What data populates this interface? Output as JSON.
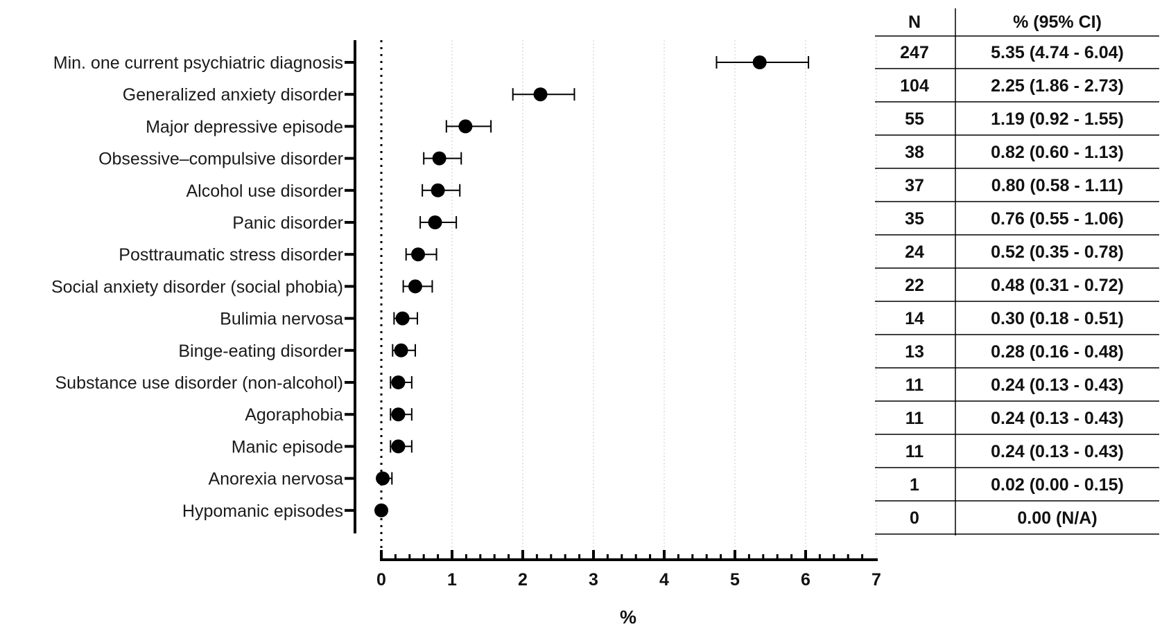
{
  "chart_data": {
    "type": "scatter",
    "subtype": "forest-plot",
    "xlabel": "%",
    "xlim": [
      0,
      7
    ],
    "x_ticks": [
      "0",
      "1",
      "2",
      "3",
      "4",
      "5",
      "6",
      "7"
    ],
    "grid": "vertical dotted",
    "reference_line": 0,
    "marker_color": "#000000",
    "rows": [
      {
        "label": "Min. one current psychiatric diagnosis",
        "estimate": 5.35,
        "lower": 4.74,
        "upper": 6.04
      },
      {
        "label": "Generalized anxiety disorder",
        "estimate": 2.25,
        "lower": 1.86,
        "upper": 2.73
      },
      {
        "label": "Major depressive episode",
        "estimate": 1.19,
        "lower": 0.92,
        "upper": 1.55
      },
      {
        "label": "Obsessive–compulsive disorder ",
        "estimate": 0.82,
        "lower": 0.6,
        "upper": 1.13
      },
      {
        "label": "Alcohol use disorder",
        "estimate": 0.8,
        "lower": 0.58,
        "upper": 1.11
      },
      {
        "label": "Panic disorder",
        "estimate": 0.76,
        "lower": 0.55,
        "upper": 1.06
      },
      {
        "label": "Posttraumatic stress disorder ",
        "estimate": 0.52,
        "lower": 0.35,
        "upper": 0.78
      },
      {
        "label": "Social anxiety disorder (social phobia)",
        "estimate": 0.48,
        "lower": 0.31,
        "upper": 0.72
      },
      {
        "label": "Bulimia nervosa",
        "estimate": 0.3,
        "lower": 0.18,
        "upper": 0.51
      },
      {
        "label": "Binge-eating disorder",
        "estimate": 0.28,
        "lower": 0.16,
        "upper": 0.48
      },
      {
        "label": "Substance use disorder (non-alcohol)",
        "estimate": 0.24,
        "lower": 0.13,
        "upper": 0.43
      },
      {
        "label": "Agoraphobia ",
        "estimate": 0.24,
        "lower": 0.13,
        "upper": 0.43
      },
      {
        "label": "Manic episode",
        "estimate": 0.24,
        "lower": 0.13,
        "upper": 0.43
      },
      {
        "label": "Anorexia nervosa",
        "estimate": 0.02,
        "lower": 0.0,
        "upper": 0.15
      },
      {
        "label": "Hypomanic episodes",
        "estimate": 0.0,
        "lower": null,
        "upper": null
      }
    ],
    "table": {
      "headers": [
        "N",
        "% (95% CI)"
      ],
      "rows": [
        [
          "247",
          "5.35 (4.74 - 6.04)"
        ],
        [
          "104",
          "2.25 (1.86 - 2.73)"
        ],
        [
          "55",
          "1.19 (0.92 - 1.55)"
        ],
        [
          "38",
          "0.82 (0.60 - 1.13)"
        ],
        [
          "37",
          "0.80 (0.58 - 1.11)"
        ],
        [
          "35",
          "0.76 (0.55 - 1.06)"
        ],
        [
          "24",
          "0.52 (0.35 - 0.78)"
        ],
        [
          "22",
          "0.48 (0.31 - 0.72)"
        ],
        [
          "14",
          "0.30 (0.18 - 0.51)"
        ],
        [
          "13",
          "0.28 (0.16 - 0.48)"
        ],
        [
          "11",
          "0.24 (0.13 - 0.43)"
        ],
        [
          "11",
          "0.24 (0.13 - 0.43)"
        ],
        [
          "11",
          "0.24 (0.13 - 0.43)"
        ],
        [
          "1",
          "0.02 (0.00 - 0.15)"
        ],
        [
          "0",
          "0.00 (N/A)"
        ]
      ]
    }
  }
}
